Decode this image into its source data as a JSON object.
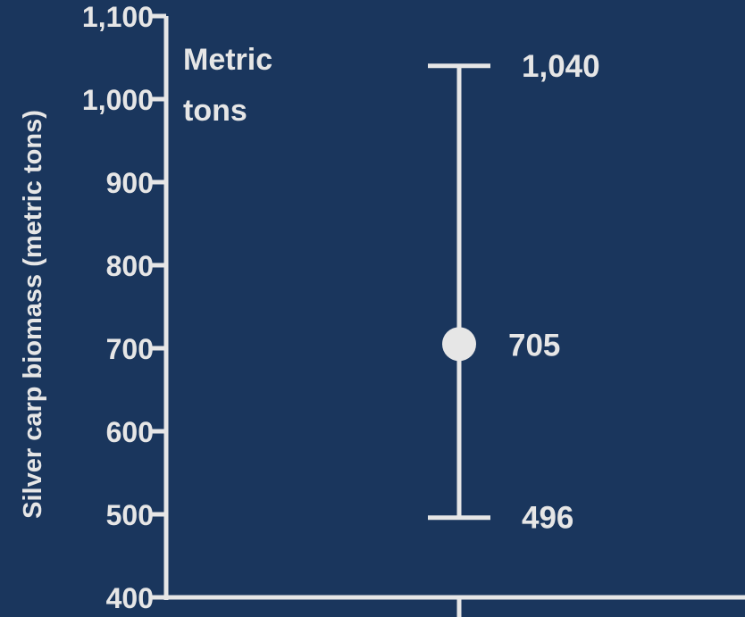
{
  "colors": {
    "background": "#1a365d",
    "axis": "#e6e6e6",
    "text": "#e6e6e6",
    "marker": "#e6e6e6"
  },
  "chart_data": {
    "type": "scatter",
    "title": "",
    "ylabel": "Silver carp biomass (metric tons)",
    "unit_label_line1": "Metric",
    "unit_label_line2": "tons",
    "ylim": [
      400,
      1100
    ],
    "yticks": [
      400,
      500,
      600,
      700,
      800,
      900,
      1000,
      1100
    ],
    "ytick_labels": [
      "400",
      "500",
      "600",
      "700",
      "800",
      "900",
      "1,000",
      "1,100"
    ],
    "grid": false,
    "point": {
      "value": 705,
      "lower": 496,
      "upper": 1040,
      "value_label": "705",
      "lower_label": "496",
      "upper_label": "1,040"
    }
  }
}
